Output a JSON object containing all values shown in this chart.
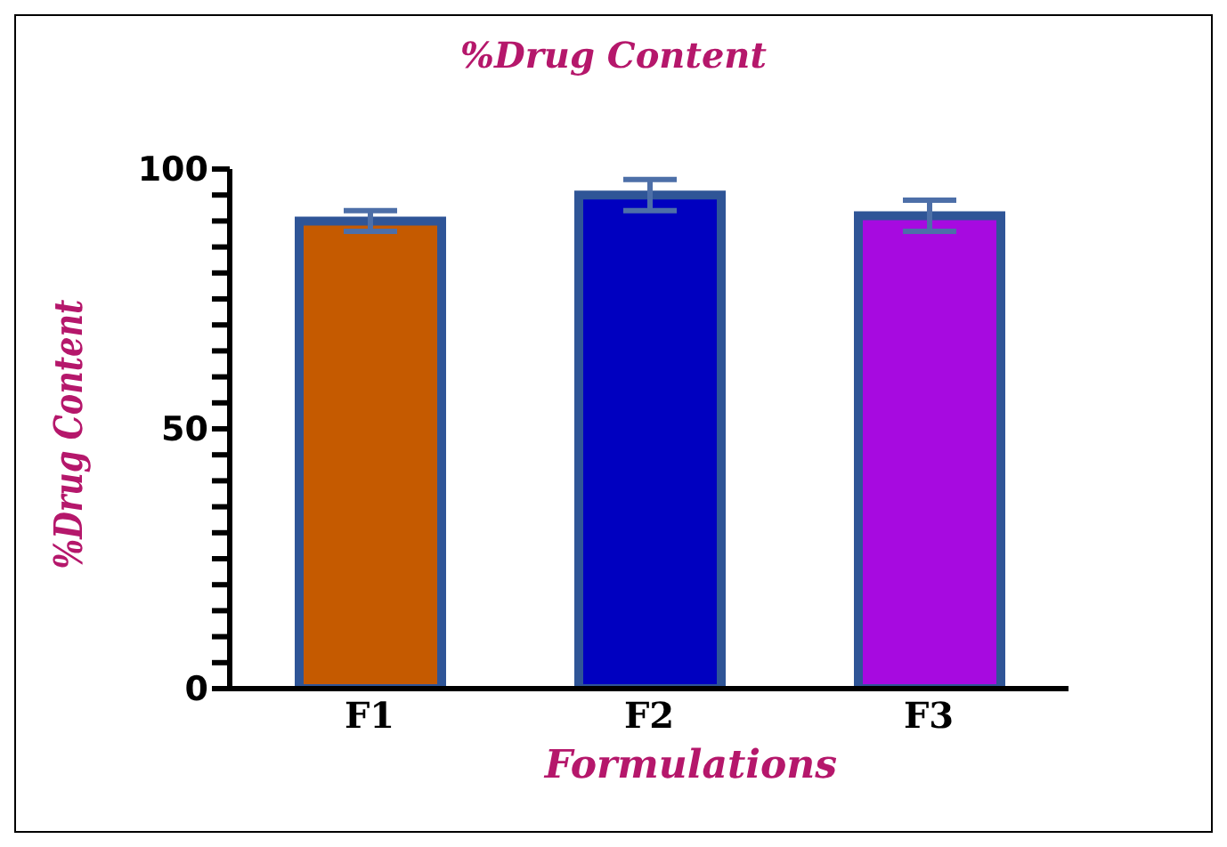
{
  "chart_data": {
    "type": "bar",
    "title": "%Drug Content",
    "xlabel": "Formulations",
    "ylabel": "%Drug Content",
    "categories": [
      "F1",
      "F2",
      "F3"
    ],
    "values": [
      90,
      95,
      91
    ],
    "colors": [
      "#c55a00",
      "#0000c0",
      "#a70ae0"
    ],
    "errors": [
      2,
      3,
      3
    ],
    "ylim": [
      0,
      100
    ],
    "yticks": [
      0,
      {
        "value": 5,
        "label": null
      },
      {
        "value": 10,
        "label": null
      },
      {
        "value": 15,
        "label": null
      },
      {
        "value": 20,
        "label": null
      },
      {
        "value": 25,
        "label": null
      },
      {
        "value": 30,
        "label": null
      },
      {
        "value": 35,
        "label": null
      },
      {
        "value": 40,
        "label": null
      },
      {
        "value": 45,
        "label": null
      },
      50,
      {
        "value": 55,
        "label": null
      },
      {
        "value": 60,
        "label": null
      },
      {
        "value": 65,
        "label": null
      },
      {
        "value": 70,
        "label": null
      },
      {
        "value": 75,
        "label": null
      },
      {
        "value": 80,
        "label": null
      },
      {
        "value": 85,
        "label": null
      },
      {
        "value": 90,
        "label": null
      },
      {
        "value": 95,
        "label": null
      },
      100
    ],
    "grid": false,
    "legend": false
  }
}
